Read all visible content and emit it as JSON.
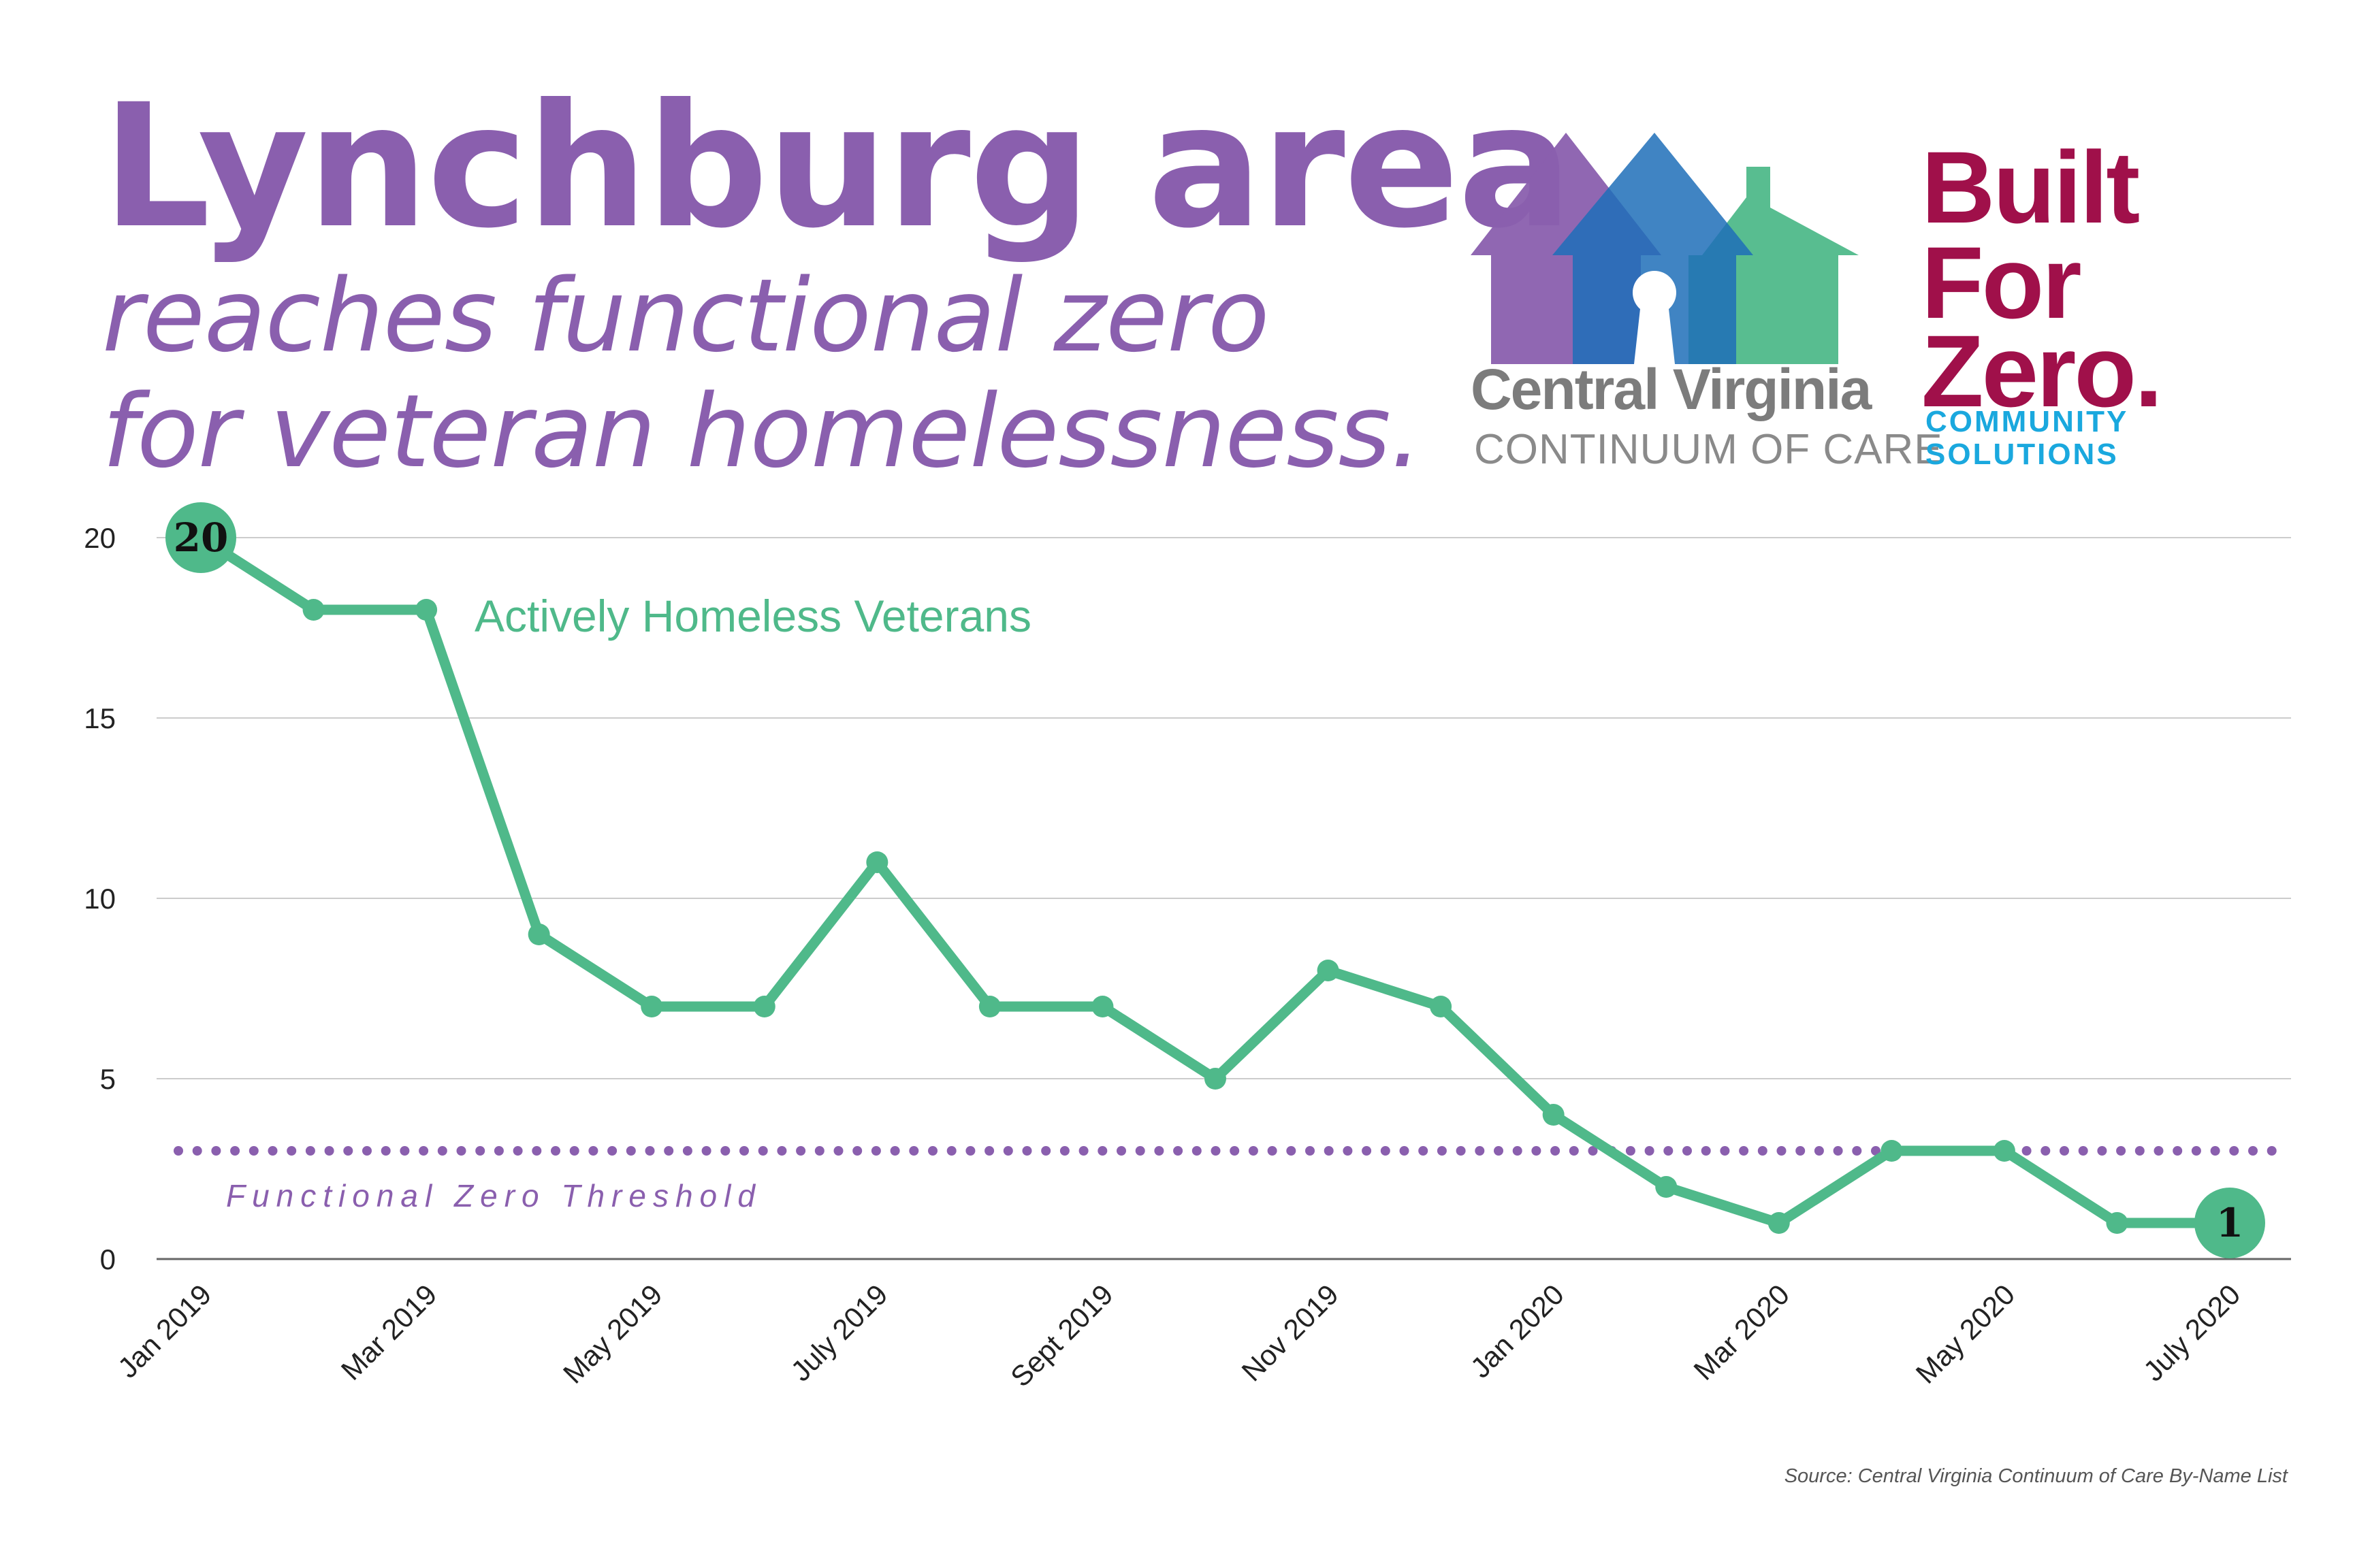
{
  "header": {
    "title_line_1": "Lynchburg area",
    "title_line_2": "reaches functional zero",
    "title_line_3": "for veteran homelessness."
  },
  "logos": {
    "cvcoc": {
      "name": "Central Virginia",
      "subtitle": "CONTINUUM OF CARE",
      "icon": "three-houses-keyhole-icon"
    },
    "bfz": {
      "line_1": "Built",
      "line_2": "For",
      "line_3": "Zero.",
      "org_line_1": "COMMUNITY",
      "org_line_2": "SOLUTIONS"
    }
  },
  "colors": {
    "title": "#8a5fae",
    "series": "#4fb98a",
    "threshold": "#8a5fae",
    "grid": "#cccccc",
    "bfz": "#a0104a",
    "community": "#1aa8de",
    "house_purple": "#8a5fae",
    "house_blue": "#1f6fb8",
    "house_green": "#4fb98a"
  },
  "source": "Source: Central Virginia Continuum of Care By-Name List",
  "chart_data": {
    "type": "line",
    "title": "",
    "xlabel": "",
    "ylabel": "",
    "x": [
      "Jan 2019",
      "Feb 2019",
      "Mar 2019",
      "Apr 2019",
      "May 2019",
      "Jun 2019",
      "July 2019",
      "Aug 2019",
      "Sept 2019",
      "Oct 2019",
      "Nov 2019",
      "Dec 2019",
      "Jan 2020",
      "Feb 2020",
      "Mar 2020",
      "Apr 2020",
      "May 2020",
      "Jun 2020",
      "July 2020"
    ],
    "tick_labels": [
      "Jan 2019",
      "Mar 2019",
      "May 2019",
      "July 2019",
      "Sept 2019",
      "Nov 2019",
      "Jan 2020",
      "Mar 2020",
      "May 2020",
      "July 2020"
    ],
    "series": [
      {
        "name": "Actively Homeless Veterans",
        "values": [
          20,
          18,
          18,
          9,
          7,
          7,
          11,
          7,
          7,
          5,
          8,
          7,
          4,
          2,
          1,
          3,
          3,
          1,
          1
        ]
      }
    ],
    "threshold": {
      "label": "Functional Zero Threshold",
      "value": 3
    },
    "highlighted_points": [
      {
        "x": "Jan 2019",
        "label": "20"
      },
      {
        "x": "July 2020",
        "label": "1"
      }
    ],
    "yticks": [
      0,
      5,
      10,
      15,
      20
    ],
    "ylim": [
      0,
      20
    ],
    "grid": true,
    "legend": "none"
  }
}
